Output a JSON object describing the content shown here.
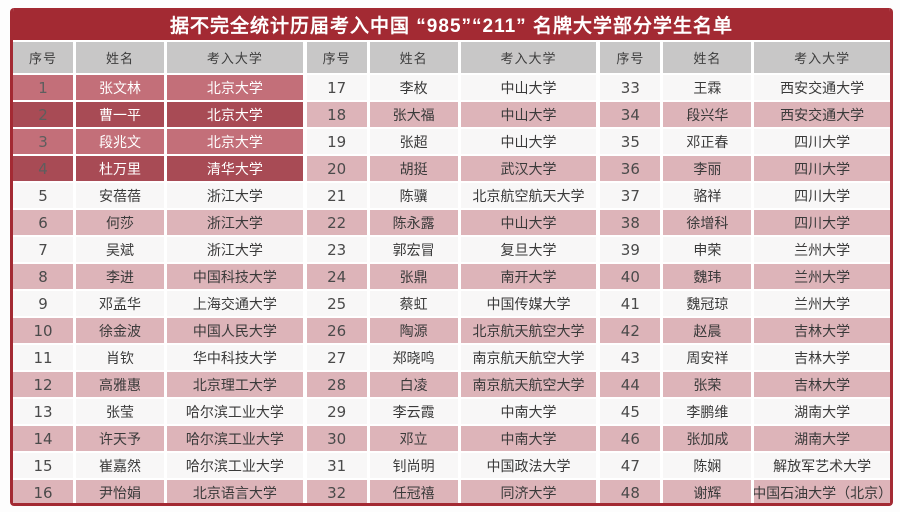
{
  "title": "据不完全统计历届考入中国 “985”“211” 名牌大学部分学生名单",
  "colors": {
    "frame_red": "#a32a33",
    "header_gray": "#c8c7c7",
    "row_white": "#f8f7f7",
    "row_pink": "#ddb4b9",
    "highlight_light_red": "#c36f79",
    "highlight_dark_red": "#a84b55",
    "title_text": "#ffffff"
  },
  "table": {
    "column_headers": [
      "序号",
      "姓名",
      "考入大学"
    ],
    "groups": [
      {
        "rows": [
          {
            "no": "1",
            "name": "张文林",
            "university": "北京大学",
            "variant": "hl-a"
          },
          {
            "no": "2",
            "name": "曹一平",
            "university": "北京大学",
            "variant": "hl-b"
          },
          {
            "no": "3",
            "name": "段兆文",
            "university": "北京大学",
            "variant": "hl-a"
          },
          {
            "no": "4",
            "name": "杜万里",
            "university": "清华大学",
            "variant": "hl-b"
          },
          {
            "no": "5",
            "name": "安蓓蓓",
            "university": "浙江大学",
            "variant": "light"
          },
          {
            "no": "6",
            "name": "何莎",
            "university": "浙江大学",
            "variant": "rose"
          },
          {
            "no": "7",
            "name": "吴斌",
            "university": "浙江大学",
            "variant": "light"
          },
          {
            "no": "8",
            "name": "李进",
            "university": "中国科技大学",
            "variant": "rose"
          },
          {
            "no": "9",
            "name": "邓孟华",
            "university": "上海交通大学",
            "variant": "light"
          },
          {
            "no": "10",
            "name": "徐金波",
            "university": "中国人民大学",
            "variant": "rose"
          },
          {
            "no": "11",
            "name": "肖钦",
            "university": "华中科技大学",
            "variant": "light"
          },
          {
            "no": "12",
            "name": "高雅惠",
            "university": "北京理工大学",
            "variant": "rose"
          },
          {
            "no": "13",
            "name": "张莹",
            "university": "哈尔滨工业大学",
            "variant": "light"
          },
          {
            "no": "14",
            "name": "许天予",
            "university": "哈尔滨工业大学",
            "variant": "rose"
          },
          {
            "no": "15",
            "name": "崔嘉然",
            "university": "哈尔滨工业大学",
            "variant": "light"
          },
          {
            "no": "16",
            "name": "尹怡娟",
            "university": "北京语言大学",
            "variant": "rose"
          }
        ]
      },
      {
        "rows": [
          {
            "no": "17",
            "name": "李枚",
            "university": "中山大学",
            "variant": "light"
          },
          {
            "no": "18",
            "name": "张大福",
            "university": "中山大学",
            "variant": "rose"
          },
          {
            "no": "19",
            "name": "张超",
            "university": "中山大学",
            "variant": "light"
          },
          {
            "no": "20",
            "name": "胡挺",
            "university": "武汉大学",
            "variant": "rose"
          },
          {
            "no": "21",
            "name": "陈骥",
            "university": "北京航空航天大学",
            "variant": "light"
          },
          {
            "no": "22",
            "name": "陈永露",
            "university": "中山大学",
            "variant": "rose"
          },
          {
            "no": "23",
            "name": "郭宏冒",
            "university": "复旦大学",
            "variant": "light"
          },
          {
            "no": "24",
            "name": "张鼎",
            "university": "南开大学",
            "variant": "rose"
          },
          {
            "no": "25",
            "name": "蔡虹",
            "university": "中国传媒大学",
            "variant": "light"
          },
          {
            "no": "26",
            "name": "陶源",
            "university": "北京航天航空大学",
            "variant": "rose"
          },
          {
            "no": "27",
            "name": "郑晓鸣",
            "university": "南京航天航空大学",
            "variant": "light"
          },
          {
            "no": "28",
            "name": "白凌",
            "university": "南京航天航空大学",
            "variant": "rose"
          },
          {
            "no": "29",
            "name": "李云霞",
            "university": "中南大学",
            "variant": "light"
          },
          {
            "no": "30",
            "name": "邓立",
            "university": "中南大学",
            "variant": "rose"
          },
          {
            "no": "31",
            "name": "钊尚明",
            "university": "中国政法大学",
            "variant": "light"
          },
          {
            "no": "32",
            "name": "任冠禧",
            "university": "同济大学",
            "variant": "rose"
          }
        ]
      },
      {
        "rows": [
          {
            "no": "33",
            "name": "王霖",
            "university": "西安交通大学",
            "variant": "light"
          },
          {
            "no": "34",
            "name": "段兴华",
            "university": "西安交通大学",
            "variant": "rose"
          },
          {
            "no": "35",
            "name": "邓正春",
            "university": "四川大学",
            "variant": "light"
          },
          {
            "no": "36",
            "name": "李丽",
            "university": "四川大学",
            "variant": "rose"
          },
          {
            "no": "37",
            "name": "骆祥",
            "university": "四川大学",
            "variant": "light"
          },
          {
            "no": "38",
            "name": "徐增科",
            "university": "四川大学",
            "variant": "rose"
          },
          {
            "no": "39",
            "name": "申荣",
            "university": "兰州大学",
            "variant": "light"
          },
          {
            "no": "40",
            "name": "魏玮",
            "university": "兰州大学",
            "variant": "rose"
          },
          {
            "no": "41",
            "name": "魏冠琼",
            "university": "兰州大学",
            "variant": "light"
          },
          {
            "no": "42",
            "name": "赵晨",
            "university": "吉林大学",
            "variant": "rose"
          },
          {
            "no": "43",
            "name": "周安祥",
            "university": "吉林大学",
            "variant": "light"
          },
          {
            "no": "44",
            "name": "张荣",
            "university": "吉林大学",
            "variant": "rose"
          },
          {
            "no": "45",
            "name": "李鹏维",
            "university": "湖南大学",
            "variant": "light"
          },
          {
            "no": "46",
            "name": "张加成",
            "university": "湖南大学",
            "variant": "rose"
          },
          {
            "no": "47",
            "name": "陈娴",
            "university": "解放军艺术大学",
            "variant": "light"
          },
          {
            "no": "48",
            "name": "谢辉",
            "university": "中国石油大学（北京）",
            "variant": "rose"
          }
        ]
      }
    ]
  }
}
